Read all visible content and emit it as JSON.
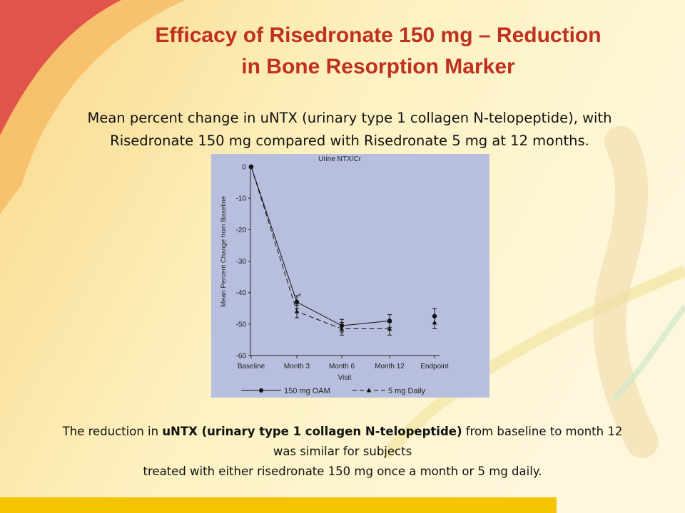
{
  "slide": {
    "title_line1": "Efficacy of Risedronate 150 mg – Reduction",
    "title_line2": "in Bone Resorption Marker",
    "subtitle_line1": "Mean percent change in uNTX (urinary type 1 collagen N-telopeptide), with",
    "subtitle_line2": "Risedronate 150 mg compared with Risedronate 5 mg at 12 months.",
    "caption_pre": "The reduction in ",
    "caption_bold": "uNTX (urinary type 1 collagen N-telopeptide)",
    "caption_post": " from baseline to month 12",
    "caption_line2": "was similar for subjects",
    "caption_line3": "treated with either risedronate 150 mg once a month or 5 mg daily.",
    "colors": {
      "title": "#c0301e",
      "chart_background": "#b8bedd",
      "bottom_bar": "#f4c400",
      "series": "#111111"
    }
  },
  "chart_data": {
    "type": "line",
    "title": "Urine NTX/Cr",
    "xlabel": "Visit",
    "ylabel": "Mean Percent Change from Baseline",
    "categories": [
      "Baseline",
      "Month 3",
      "Month 6",
      "Month 12",
      "Endpoint"
    ],
    "ylim": [
      -60,
      0
    ],
    "yticks": [
      0,
      -10,
      -20,
      -30,
      -40,
      -50,
      -60
    ],
    "grid": false,
    "legend_position": "bottom",
    "annotation": "*",
    "series": [
      {
        "name": "150 mg OAM",
        "line_style": "solid",
        "marker": "circle",
        "values": [
          0,
          -43,
          -50.5,
          -49,
          -47.5
        ],
        "errors": [
          0,
          2,
          2,
          2,
          2.5
        ],
        "connect_last": false
      },
      {
        "name": "5 mg Daily",
        "line_style": "dashed",
        "marker": "triangle",
        "values": [
          0,
          -46,
          -51.5,
          -51.5,
          -49.5
        ],
        "errors": [
          0,
          2,
          2,
          2,
          2
        ],
        "connect_last": false
      }
    ]
  }
}
